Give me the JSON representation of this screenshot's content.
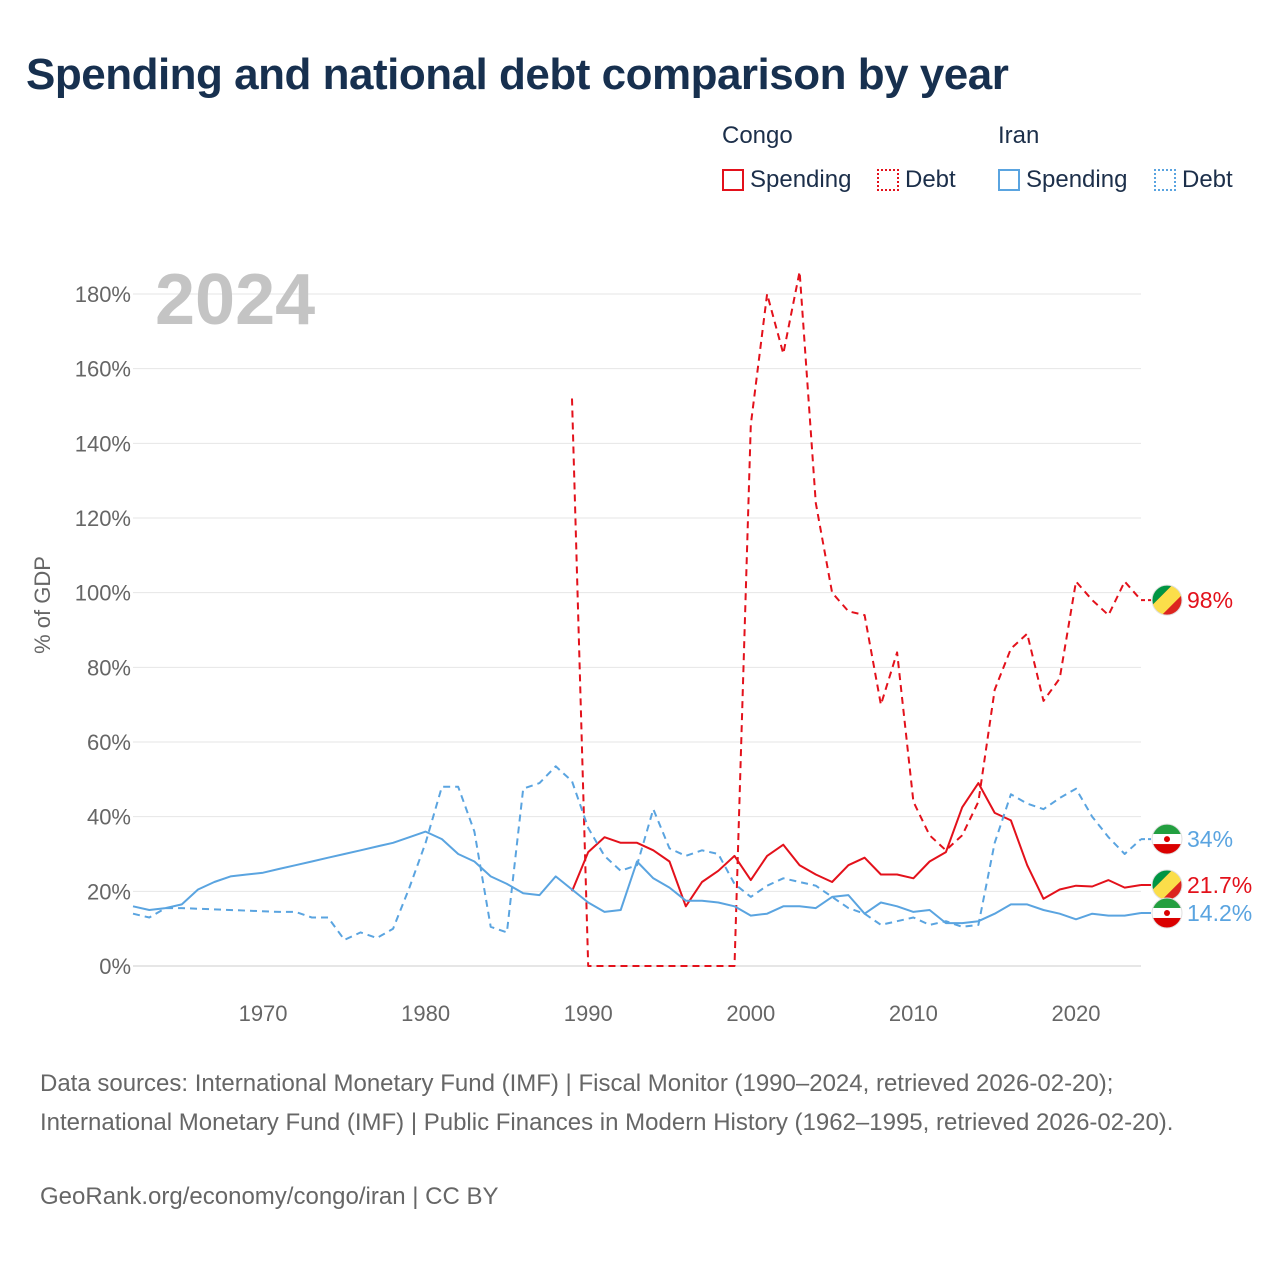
{
  "title": "Spending and national debt comparison by year",
  "legend": {
    "congo": {
      "name": "Congo",
      "spending": "Spending",
      "debt": "Debt"
    },
    "iran": {
      "name": "Iran",
      "spending": "Spending",
      "debt": "Debt"
    }
  },
  "colors": {
    "congo": "#e3111b",
    "iran": "#5aa4e0"
  },
  "footer": {
    "sources": "Data sources: International Monetary Fund (IMF) | Fiscal Monitor (1990–2024, retrieved 2026-02-20); International Monetary Fund (IMF) | Public Finances in Modern History (1962–1995, retrieved 2026-02-20).",
    "credit": "GeoRank.org/economy/congo/iran | CC BY"
  },
  "chart_data": {
    "type": "line",
    "year_label": "2024",
    "ylabel": "% of GDP",
    "xlim": [
      1962,
      2024
    ],
    "ylim": [
      0,
      180
    ],
    "x_ticks": [
      1970,
      1980,
      1990,
      2000,
      2010,
      2020
    ],
    "y_ticks": [
      0,
      20,
      40,
      60,
      80,
      100,
      120,
      140,
      160,
      180
    ],
    "y_tick_labels": [
      "0%",
      "20%",
      "40%",
      "60%",
      "80%",
      "100%",
      "120%",
      "140%",
      "160%",
      "180%"
    ],
    "series": [
      {
        "name": "Congo Debt",
        "country": "Congo",
        "color": "#e3111b",
        "dashed": true,
        "end_label": "98%",
        "points": [
          [
            1989,
            152
          ],
          [
            1990,
            0
          ],
          [
            1991,
            0
          ],
          [
            1992,
            0
          ],
          [
            1993,
            0
          ],
          [
            1994,
            0
          ],
          [
            1995,
            0
          ],
          [
            1996,
            0
          ],
          [
            1997,
            0
          ],
          [
            1998,
            0
          ],
          [
            1999,
            0
          ],
          [
            2000,
            145
          ],
          [
            2001,
            180
          ],
          [
            2002,
            164
          ],
          [
            2003,
            186
          ],
          [
            2004,
            124
          ],
          [
            2005,
            100
          ],
          [
            2006,
            95
          ],
          [
            2007,
            94
          ],
          [
            2008,
            70
          ],
          [
            2009,
            84
          ],
          [
            2010,
            44
          ],
          [
            2011,
            35
          ],
          [
            2012,
            31
          ],
          [
            2013,
            35
          ],
          [
            2014,
            44
          ],
          [
            2015,
            74
          ],
          [
            2016,
            85
          ],
          [
            2017,
            89
          ],
          [
            2018,
            71
          ],
          [
            2019,
            77
          ],
          [
            2020,
            103
          ],
          [
            2021,
            98
          ],
          [
            2022,
            94
          ],
          [
            2023,
            103
          ],
          [
            2024,
            98
          ]
        ]
      },
      {
        "name": "Congo Spending",
        "country": "Congo",
        "color": "#e3111b",
        "dashed": false,
        "end_label": "21.7%",
        "points": [
          [
            1989,
            20
          ],
          [
            1990,
            30.5
          ],
          [
            1991,
            34.5
          ],
          [
            1992,
            33
          ],
          [
            1993,
            33
          ],
          [
            1994,
            31
          ],
          [
            1995,
            28
          ],
          [
            1996,
            16
          ],
          [
            1997,
            22.5
          ],
          [
            1998,
            25.5
          ],
          [
            1999,
            29.5
          ],
          [
            2000,
            23
          ],
          [
            2001,
            29.5
          ],
          [
            2002,
            32.5
          ],
          [
            2003,
            27
          ],
          [
            2004,
            24.5
          ],
          [
            2005,
            22.5
          ],
          [
            2006,
            27
          ],
          [
            2007,
            29
          ],
          [
            2008,
            24.5
          ],
          [
            2009,
            24.5
          ],
          [
            2010,
            23.5
          ],
          [
            2011,
            28
          ],
          [
            2012,
            30.5
          ],
          [
            2013,
            42.5
          ],
          [
            2014,
            49
          ],
          [
            2015,
            41
          ],
          [
            2016,
            39
          ],
          [
            2017,
            27
          ],
          [
            2018,
            18
          ],
          [
            2019,
            20.5
          ],
          [
            2020,
            21.5
          ],
          [
            2021,
            21.3
          ],
          [
            2022,
            23
          ],
          [
            2023,
            21
          ],
          [
            2024,
            21.7
          ]
        ]
      },
      {
        "name": "Iran Debt",
        "country": "Iran",
        "color": "#5aa4e0",
        "dashed": true,
        "end_label": "34%",
        "points": [
          [
            1962,
            14
          ],
          [
            1963,
            13
          ],
          [
            1964,
            15.5
          ],
          [
            1965,
            15.5
          ],
          [
            1971,
            14.5
          ],
          [
            1972,
            14.5
          ],
          [
            1973,
            13
          ],
          [
            1974,
            13
          ],
          [
            1975,
            7
          ],
          [
            1976,
            9
          ],
          [
            1977,
            7.5
          ],
          [
            1978,
            10
          ],
          [
            1979,
            21
          ],
          [
            1980,
            33
          ],
          [
            1981,
            48
          ],
          [
            1982,
            48
          ],
          [
            1983,
            36
          ],
          [
            1984,
            10.5
          ],
          [
            1985,
            9
          ],
          [
            1986,
            47.5
          ],
          [
            1987,
            49
          ],
          [
            1988,
            53.5
          ],
          [
            1989,
            49.5
          ],
          [
            1990,
            37
          ],
          [
            1991,
            29.5
          ],
          [
            1992,
            25.5
          ],
          [
            1993,
            27
          ],
          [
            1994,
            42
          ],
          [
            1995,
            31.5
          ],
          [
            1996,
            29.5
          ],
          [
            1997,
            31
          ],
          [
            1998,
            30
          ],
          [
            1999,
            22
          ],
          [
            2000,
            18.5
          ],
          [
            2001,
            21.5
          ],
          [
            2002,
            23.5
          ],
          [
            2003,
            22.5
          ],
          [
            2004,
            21.5
          ],
          [
            2005,
            18.5
          ],
          [
            2006,
            15.5
          ],
          [
            2007,
            14
          ],
          [
            2008,
            11
          ],
          [
            2009,
            12
          ],
          [
            2010,
            13
          ],
          [
            2011,
            11
          ],
          [
            2012,
            12
          ],
          [
            2013,
            10.5
          ],
          [
            2014,
            11
          ],
          [
            2015,
            33
          ],
          [
            2016,
            46
          ],
          [
            2017,
            43.5
          ],
          [
            2018,
            42
          ],
          [
            2019,
            45
          ],
          [
            2020,
            47.5
          ],
          [
            2021,
            40
          ],
          [
            2022,
            34.5
          ],
          [
            2023,
            30
          ],
          [
            2024,
            34
          ]
        ]
      },
      {
        "name": "Iran Spending",
        "country": "Iran",
        "color": "#5aa4e0",
        "dashed": false,
        "end_label": "14.2%",
        "points": [
          [
            1962,
            16
          ],
          [
            1963,
            15
          ],
          [
            1964,
            15.5
          ],
          [
            1965,
            16.5
          ],
          [
            1966,
            20.5
          ],
          [
            1967,
            22.5
          ],
          [
            1968,
            24
          ],
          [
            1969,
            24.5
          ],
          [
            1970,
            25
          ],
          [
            1971,
            26
          ],
          [
            1972,
            27
          ],
          [
            1973,
            28
          ],
          [
            1974,
            29
          ],
          [
            1975,
            30
          ],
          [
            1976,
            31
          ],
          [
            1977,
            32
          ],
          [
            1978,
            33
          ],
          [
            1979,
            34.5
          ],
          [
            1980,
            36
          ],
          [
            1981,
            34
          ],
          [
            1982,
            30
          ],
          [
            1983,
            28
          ],
          [
            1984,
            24
          ],
          [
            1985,
            22
          ],
          [
            1986,
            19.5
          ],
          [
            1987,
            19
          ],
          [
            1988,
            24
          ],
          [
            1989,
            20.5
          ],
          [
            1990,
            17
          ],
          [
            1991,
            14.5
          ],
          [
            1992,
            15
          ],
          [
            1993,
            28
          ],
          [
            1994,
            23.5
          ],
          [
            1995,
            21
          ],
          [
            1996,
            17.5
          ],
          [
            1997,
            17.5
          ],
          [
            1998,
            17
          ],
          [
            1999,
            16
          ],
          [
            2000,
            13.5
          ],
          [
            2001,
            14
          ],
          [
            2002,
            16
          ],
          [
            2003,
            16
          ],
          [
            2004,
            15.5
          ],
          [
            2005,
            18.5
          ],
          [
            2006,
            19
          ],
          [
            2007,
            14
          ],
          [
            2008,
            17
          ],
          [
            2009,
            16
          ],
          [
            2010,
            14.5
          ],
          [
            2011,
            15
          ],
          [
            2012,
            11.5
          ],
          [
            2013,
            11.5
          ],
          [
            2014,
            12
          ],
          [
            2015,
            14
          ],
          [
            2016,
            16.5
          ],
          [
            2017,
            16.5
          ],
          [
            2018,
            15
          ],
          [
            2019,
            14
          ],
          [
            2020,
            12.5
          ],
          [
            2021,
            14
          ],
          [
            2022,
            13.5
          ],
          [
            2023,
            13.5
          ],
          [
            2024,
            14.2
          ]
        ]
      }
    ]
  }
}
